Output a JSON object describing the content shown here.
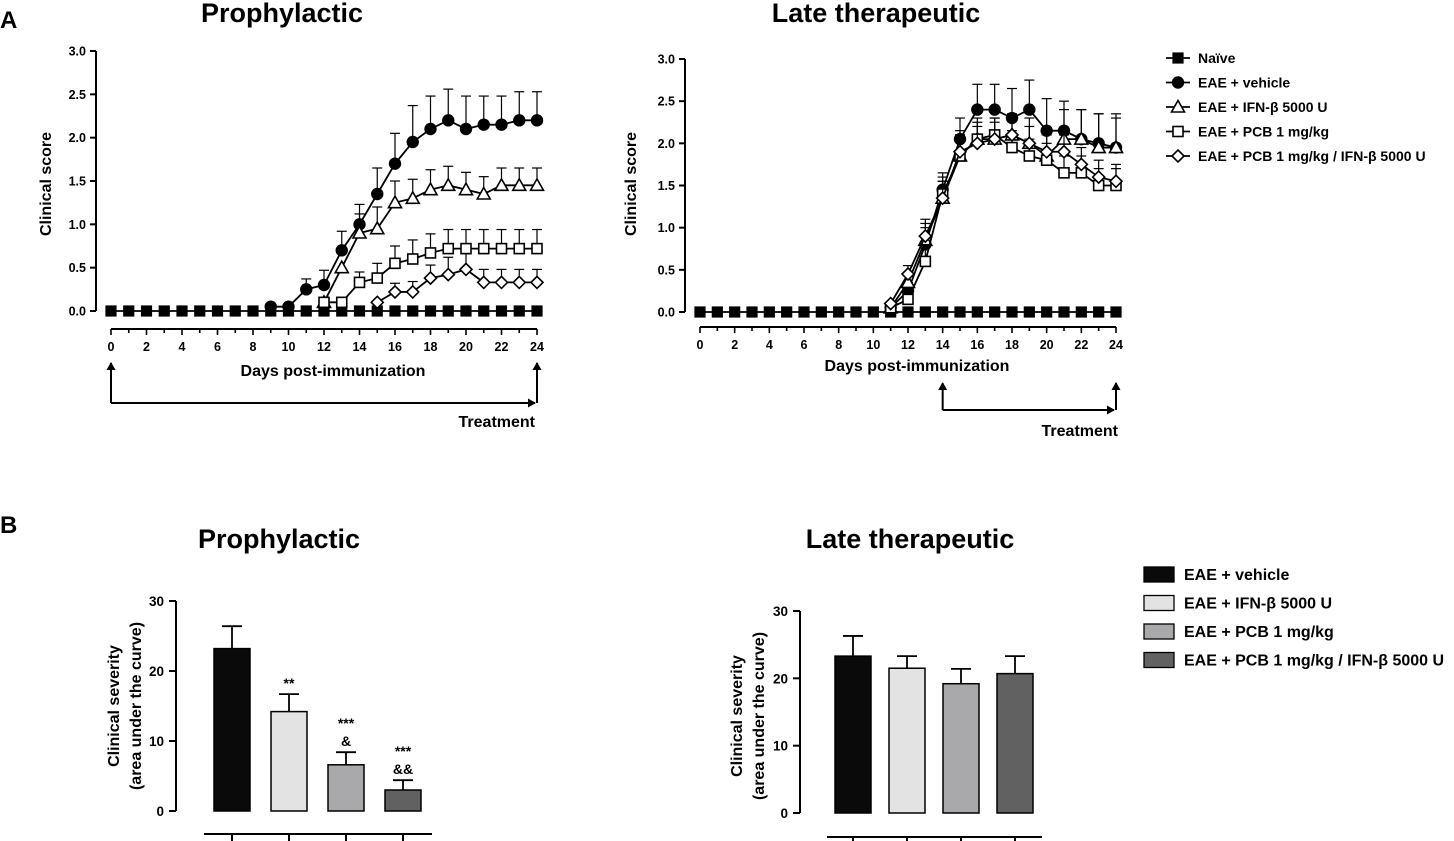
{
  "panels": {
    "a": "A",
    "b": "B"
  },
  "treatment_label": "Treatment",
  "chart_data": [
    {
      "id": "A1",
      "type": "line",
      "title": "Prophylactic",
      "xlabel": "Days post-immunization",
      "ylabel": "Clinical score",
      "xlim": [
        0,
        24
      ],
      "ylim": [
        0,
        3.0
      ],
      "xticks": [
        "0",
        "2",
        "4",
        "6",
        "8",
        "10",
        "12",
        "14",
        "16",
        "18",
        "20",
        "22",
        "24"
      ],
      "yticks": [
        "0.0",
        "0.5",
        "1.0",
        "1.5",
        "2.0",
        "2.5",
        "3.0"
      ],
      "treatment_window": [
        0,
        24
      ],
      "series": [
        {
          "name": "Naïve",
          "marker": "square-filled",
          "x": [
            0,
            1,
            2,
            3,
            4,
            5,
            6,
            7,
            8,
            9,
            10,
            11,
            12,
            13,
            14,
            15,
            16,
            17,
            18,
            19,
            20,
            21,
            22,
            23,
            24
          ],
          "y": [
            0,
            0,
            0,
            0,
            0,
            0,
            0,
            0,
            0,
            0,
            0,
            0,
            0,
            0,
            0,
            0,
            0,
            0,
            0,
            0,
            0,
            0,
            0,
            0,
            0
          ],
          "err": []
        },
        {
          "name": "EAE + vehicle",
          "marker": "circle-filled",
          "x": [
            9,
            10,
            11,
            12,
            13,
            14,
            15,
            16,
            17,
            18,
            19,
            20,
            21,
            22,
            23,
            24
          ],
          "y": [
            0.05,
            0.05,
            0.25,
            0.3,
            0.7,
            1.0,
            1.35,
            1.7,
            1.95,
            2.1,
            2.2,
            2.1,
            2.15,
            2.15,
            2.2,
            2.2
          ],
          "err": [
            0,
            0,
            0.12,
            0.17,
            0.22,
            0.23,
            0.3,
            0.35,
            0.42,
            0.38,
            0.36,
            0.38,
            0.33,
            0.33,
            0.33,
            0.33
          ]
        },
        {
          "name": "EAE + IFN-β 5000 U",
          "marker": "triangle-open",
          "x": [
            12,
            13,
            14,
            15,
            16,
            17,
            18,
            19,
            20,
            21,
            22,
            23,
            24
          ],
          "y": [
            0.1,
            0.5,
            0.9,
            0.95,
            1.25,
            1.3,
            1.4,
            1.45,
            1.4,
            1.35,
            1.45,
            1.45,
            1.45
          ],
          "err": [
            0,
            0,
            0.22,
            0.25,
            0.25,
            0.22,
            0.23,
            0.22,
            0.2,
            0.2,
            0.2,
            0.2,
            0.2
          ]
        },
        {
          "name": "EAE + PCB 1 mg/kg",
          "marker": "square-open",
          "x": [
            12,
            13,
            14,
            15,
            16,
            17,
            18,
            19,
            20,
            21,
            22,
            23,
            24
          ],
          "y": [
            0.1,
            0.1,
            0.33,
            0.38,
            0.55,
            0.6,
            0.67,
            0.72,
            0.72,
            0.72,
            0.72,
            0.72,
            0.72
          ],
          "err": [
            0,
            0,
            0.12,
            0.17,
            0.2,
            0.22,
            0.22,
            0.22,
            0.22,
            0.22,
            0.22,
            0.22,
            0.22
          ]
        },
        {
          "name": "EAE + PCB 1 mg/kg / IFN-β 5000 U",
          "marker": "diamond-open",
          "x": [
            15,
            16,
            17,
            18,
            19,
            20,
            21,
            22,
            23,
            24
          ],
          "y": [
            0.1,
            0.22,
            0.22,
            0.38,
            0.42,
            0.48,
            0.33,
            0.33,
            0.33,
            0.33
          ],
          "err": [
            0,
            0.1,
            0.12,
            0.15,
            0.2,
            0.18,
            0.15,
            0.15,
            0.15,
            0.15
          ]
        }
      ]
    },
    {
      "id": "A2",
      "type": "line",
      "title": "Late therapeutic",
      "xlabel": "Days post-immunization",
      "ylabel": "Clinical score",
      "xlim": [
        0,
        24
      ],
      "ylim": [
        0,
        3.0
      ],
      "xticks": [
        "0",
        "2",
        "4",
        "6",
        "8",
        "10",
        "12",
        "14",
        "16",
        "18",
        "20",
        "22",
        "24"
      ],
      "yticks": [
        "0.0",
        "0.5",
        "1.0",
        "1.5",
        "2.0",
        "2.5",
        "3.0"
      ],
      "treatment_window": [
        14,
        24
      ],
      "legend": "right",
      "series": [
        {
          "name": "Naïve",
          "marker": "square-filled",
          "x": [
            0,
            1,
            2,
            3,
            4,
            5,
            6,
            7,
            8,
            9,
            10,
            11,
            12,
            13,
            14,
            15,
            16,
            17,
            18,
            19,
            20,
            21,
            22,
            23,
            24
          ],
          "y": [
            0,
            0,
            0,
            0,
            0,
            0,
            0,
            0,
            0,
            0,
            0,
            0,
            0,
            0,
            0,
            0,
            0,
            0,
            0,
            0,
            0,
            0,
            0,
            0,
            0
          ],
          "err": []
        },
        {
          "name": "EAE + vehicle",
          "marker": "circle-filled",
          "x": [
            11,
            12,
            13,
            14,
            15,
            16,
            17,
            18,
            19,
            20,
            21,
            22,
            23,
            24
          ],
          "y": [
            0.05,
            0.25,
            0.8,
            1.45,
            2.05,
            2.4,
            2.4,
            2.3,
            2.4,
            2.15,
            2.15,
            2.05,
            2.0,
            1.95
          ],
          "err": [
            0,
            0.1,
            0.2,
            0.2,
            0.25,
            0.3,
            0.3,
            0.35,
            0.35,
            0.38,
            0.35,
            0.35,
            0.35,
            0.35
          ]
        },
        {
          "name": "EAE + IFN-β 5000 U",
          "marker": "triangle-open",
          "x": [
            11,
            12,
            13,
            14,
            15,
            16,
            17,
            18,
            19,
            20,
            21,
            22,
            23,
            24
          ],
          "y": [
            0.05,
            0.35,
            0.85,
            1.35,
            1.85,
            2.05,
            2.05,
            2.1,
            2.0,
            1.85,
            2.05,
            2.05,
            1.95,
            1.95
          ],
          "err": [
            0,
            0.1,
            0.2,
            0.2,
            0.25,
            0.25,
            0.25,
            0.25,
            0.3,
            0.3,
            0.35,
            0.35,
            0.4,
            0.4
          ]
        },
        {
          "name": "EAE + PCB 1 mg/kg",
          "marker": "square-open",
          "x": [
            11,
            12,
            13,
            14,
            15,
            16,
            17,
            18,
            19,
            20,
            21,
            22,
            23,
            24
          ],
          "y": [
            0.05,
            0.15,
            0.6,
            1.4,
            1.85,
            2.05,
            2.1,
            1.95,
            1.85,
            1.8,
            1.65,
            1.65,
            1.5,
            1.5
          ],
          "err": [
            0,
            0.1,
            0.2,
            0.2,
            0.25,
            0.2,
            0.2,
            0.2,
            0.2,
            0.2,
            0.2,
            0.2,
            0.2,
            0.2
          ]
        },
        {
          "name": "EAE + PCB 1 mg/kg / IFN-β 5000 U",
          "marker": "diamond-open",
          "x": [
            11,
            12,
            13,
            14,
            15,
            16,
            17,
            18,
            19,
            20,
            21,
            22,
            23,
            24
          ],
          "y": [
            0.1,
            0.45,
            0.9,
            1.35,
            1.9,
            2.0,
            2.05,
            2.1,
            2.0,
            1.9,
            1.9,
            1.75,
            1.6,
            1.55
          ],
          "err": [
            0,
            0.1,
            0.2,
            0.2,
            0.25,
            0.2,
            0.2,
            0.2,
            0.2,
            0.2,
            0.2,
            0.2,
            0.2,
            0.2
          ]
        }
      ]
    },
    {
      "id": "B1",
      "type": "bar",
      "title": "Prophylactic",
      "ylabel_lines": [
        "Clinical severity",
        "(area under the curve)"
      ],
      "ylim": [
        0,
        30
      ],
      "yticks": [
        "0",
        "10",
        "20",
        "30"
      ],
      "categories": [
        "EAE + vehicle",
        "EAE + IFN-β  5000 U",
        "EAE + PCB 1 mg/kg",
        "EAE + PCB 1 mg/kg / IFN-β  5000 U"
      ],
      "values": [
        23.2,
        14.2,
        6.6,
        3.0
      ],
      "errors": [
        3.2,
        2.5,
        1.8,
        1.4
      ],
      "colors": [
        "#0a0a0a",
        "#e3e3e3",
        "#a9a9ac",
        "#616161"
      ],
      "annotations": [
        [],
        [
          "**"
        ],
        [
          "***",
          "&"
        ],
        [
          "***",
          "&&"
        ]
      ]
    },
    {
      "id": "B2",
      "type": "bar",
      "title": "Late therapeutic",
      "ylabel_lines": [
        "Clinical severity",
        "(area under the curve)"
      ],
      "ylim": [
        0,
        30
      ],
      "yticks": [
        "0",
        "10",
        "20",
        "30"
      ],
      "categories": [
        "EAE + vehicle",
        "EAE + IFN-β  5000 U",
        "EAE + PCB 1 mg/kg",
        "EAE + PCB 1 mg/kg / IFN-β  5000 U"
      ],
      "values": [
        23.3,
        21.5,
        19.2,
        20.7
      ],
      "errors": [
        3.0,
        1.8,
        2.2,
        2.6
      ],
      "colors": [
        "#0a0a0a",
        "#e3e3e3",
        "#a9a9ac",
        "#616161"
      ],
      "legend": "right"
    }
  ]
}
